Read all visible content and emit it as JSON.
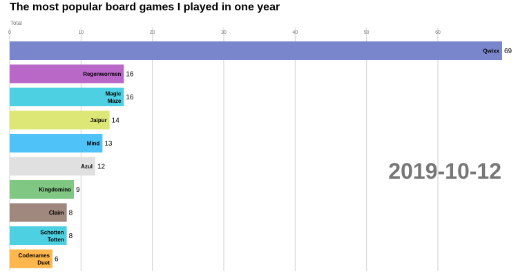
{
  "chart_data": {
    "type": "bar",
    "orientation": "horizontal",
    "title": "The most popular board games I played in one year",
    "xlabel": "Total",
    "ylabel": "",
    "xlim": [
      0,
      69
    ],
    "xticks": [
      0,
      10,
      20,
      30,
      40,
      50,
      60
    ],
    "grid": true,
    "date": "2019-10-12",
    "categories": [
      "Qwixx",
      "Regenwormen",
      "Magic Maze",
      "Jaipur",
      "Mind",
      "Azul",
      "Kingdomino",
      "Claim",
      "Schotten Totten",
      "Codenames Duet"
    ],
    "label_lines": [
      [
        "Qwixx"
      ],
      [
        "Regenwormen"
      ],
      [
        "Magic",
        "Maze"
      ],
      [
        "Jaipur"
      ],
      [
        "Mind"
      ],
      [
        "Azul"
      ],
      [
        "Kingdomino"
      ],
      [
        "Claim"
      ],
      [
        "Schotten",
        "Totten"
      ],
      [
        "Codenames",
        "Duet"
      ]
    ],
    "values": [
      69,
      16,
      16,
      14,
      13,
      12,
      9,
      8,
      8,
      6
    ],
    "colors": [
      "#7986cb",
      "#ba68c8",
      "#4dd0e1",
      "#dce775",
      "#4fc3f7",
      "#e0e0e0",
      "#81c784",
      "#a1887f",
      "#4dd0e1",
      "#ffb74d"
    ]
  }
}
